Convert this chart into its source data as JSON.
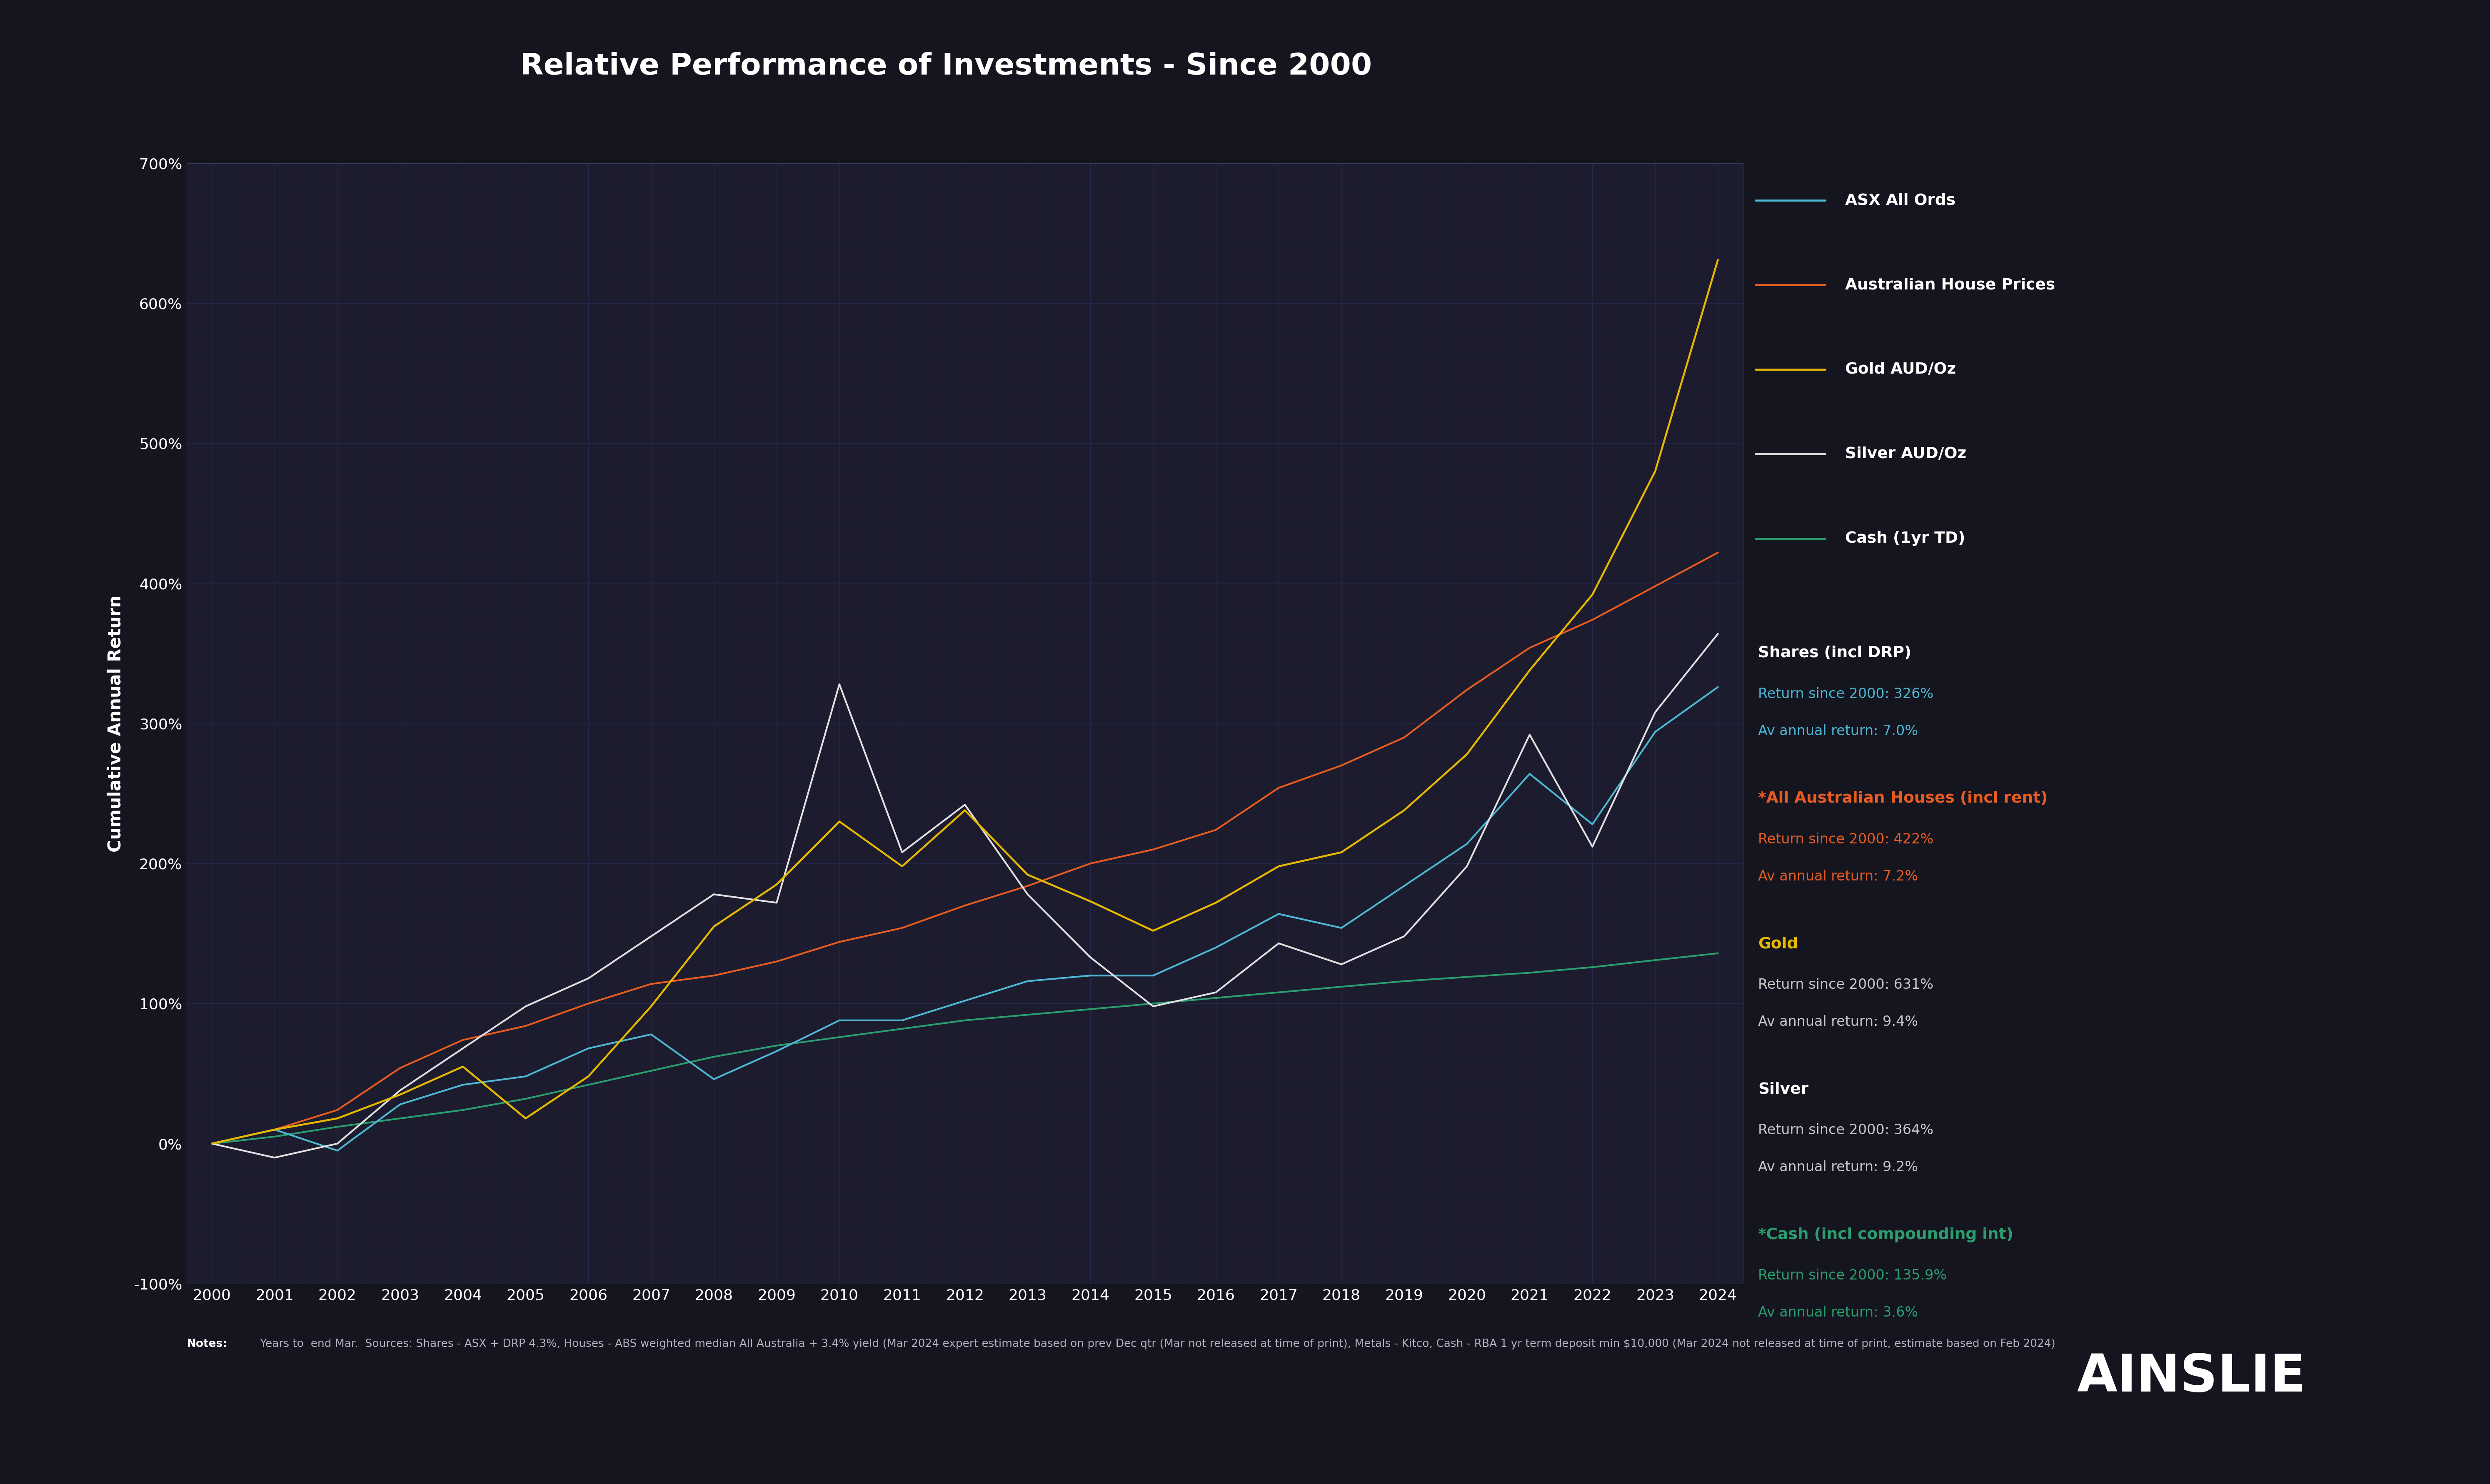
{
  "title": "Relative Performance of Investments - Since 2000",
  "ylabel": "Cumulative Annual Return",
  "background_color": "#151520",
  "plot_bg_color": "#1c1c2e",
  "grid_color": "#2a3060",
  "text_color": "#ffffff",
  "title_fontsize": 52,
  "axis_label_fontsize": 30,
  "tick_fontsize": 26,
  "years": [
    2000,
    2001,
    2002,
    2003,
    2004,
    2005,
    2006,
    2007,
    2008,
    2009,
    2010,
    2011,
    2012,
    2013,
    2014,
    2015,
    2016,
    2017,
    2018,
    2019,
    2020,
    2021,
    2022,
    2023,
    2024
  ],
  "asx": [
    0,
    10,
    -5,
    28,
    42,
    48,
    68,
    78,
    46,
    66,
    88,
    88,
    102,
    116,
    120,
    120,
    140,
    164,
    154,
    184,
    214,
    264,
    228,
    294,
    326
  ],
  "houses": [
    0,
    10,
    24,
    54,
    74,
    84,
    100,
    114,
    120,
    130,
    144,
    154,
    170,
    184,
    200,
    210,
    224,
    254,
    270,
    290,
    324,
    354,
    374,
    398,
    422
  ],
  "gold": [
    0,
    10,
    18,
    35,
    55,
    18,
    48,
    98,
    155,
    185,
    230,
    198,
    238,
    192,
    173,
    152,
    172,
    198,
    208,
    238,
    278,
    338,
    392,
    480,
    631
  ],
  "silver": [
    0,
    -10,
    0,
    38,
    68,
    98,
    118,
    148,
    178,
    172,
    328,
    208,
    242,
    178,
    133,
    98,
    108,
    143,
    128,
    148,
    198,
    292,
    212,
    308,
    364
  ],
  "cash": [
    0,
    5,
    12,
    18,
    24,
    32,
    42,
    52,
    62,
    70,
    76,
    82,
    88,
    92,
    96,
    100,
    104,
    108,
    112,
    116,
    119,
    122,
    126,
    131,
    135.9
  ],
  "asx_color": "#4db8d4",
  "houses_color": "#e85c20",
  "gold_color": "#e8b800",
  "silver_color": "#e0e0e0",
  "cash_color": "#2a9e6e",
  "legend_labels": [
    "ASX All Ords",
    "Australian House Prices",
    "Gold AUD/Oz",
    "Silver AUD/Oz",
    "Cash (1yr TD)"
  ],
  "notes_bold": "Notes:",
  "notes_regular": " Years to  end Mar.  Sources: Shares - ASX + DRP 4.3%, Houses - ABS weighted median All Australia + 3.4% yield (Mar 2024 expert estimate based on prev Dec qtr (Mar not released at time of print), Metals - Kitco, Cash - RBA 1 yr term deposit min $10,000 (Mar 2024 not released at time of print, estimate based on Feb 2024)",
  "stats": [
    {
      "key": "shares",
      "title": "Shares (incl DRP)",
      "return": "326%",
      "annual": "7.0%",
      "title_color": "#ffffff",
      "val_color": "#4db8d4",
      "bold_title": true
    },
    {
      "key": "houses",
      "title": "*All Australian Houses (incl rent)",
      "return": "422%",
      "annual": "7.2%",
      "title_color": "#e85c20",
      "val_color": "#e85c20",
      "bold_title": true
    },
    {
      "key": "gold",
      "title": "Gold",
      "return": "631%",
      "annual": "9.4%",
      "title_color": "#e8b800",
      "val_color": "#c8c8c8",
      "bold_title": true
    },
    {
      "key": "silver",
      "title": "Silver",
      "return": "364%",
      "annual": "9.2%",
      "title_color": "#ffffff",
      "val_color": "#c8c8c8",
      "bold_title": true
    },
    {
      "key": "cash",
      "title": "*Cash (incl compounding int)",
      "return": "135.9%",
      "annual": "3.6%",
      "title_color": "#2a9e6e",
      "val_color": "#2a9e6e",
      "bold_title": true
    }
  ],
  "ylim": [
    -100,
    700
  ],
  "yticks": [
    -100,
    0,
    100,
    200,
    300,
    400,
    500,
    600,
    700
  ],
  "linewidth": 3.0
}
